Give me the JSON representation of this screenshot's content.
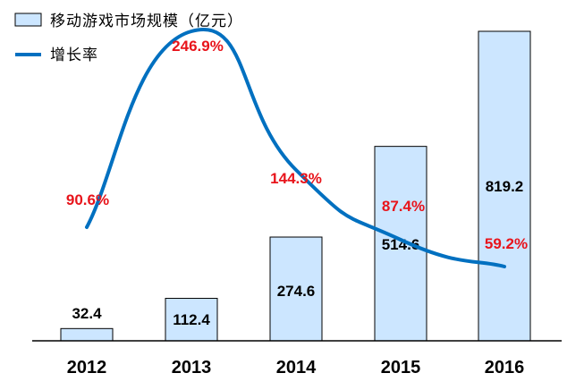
{
  "chart_data": {
    "type": "bar",
    "categories": [
      "2012",
      "2013",
      "2014",
      "2015",
      "2016"
    ],
    "series": [
      {
        "name": "移动游戏市场规模（亿元）",
        "type": "bar",
        "values": [
          32.4,
          112.4,
          274.6,
          514.6,
          819.2
        ],
        "labels": [
          "32.4",
          "112.4",
          "274.6",
          "514.6",
          "819.2"
        ],
        "color": "#cce6ff"
      },
      {
        "name": "增长率",
        "type": "line",
        "values": [
          90.6,
          246.9,
          144.3,
          87.4,
          59.2
        ],
        "labels": [
          "90.6%",
          "246.9%",
          "144.3%",
          "87.4%",
          "59.2%"
        ],
        "color": "#0070c0"
      }
    ],
    "bar_axis_range": [
      0,
      880
    ],
    "rate_axis_range": [
      0,
      255
    ],
    "label_color": "#e8141b",
    "grid": false,
    "legend_position": "top-left"
  }
}
